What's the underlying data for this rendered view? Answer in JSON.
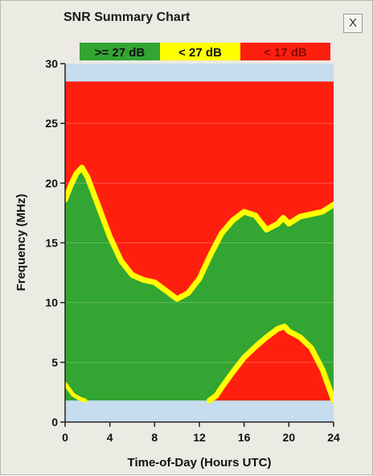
{
  "window": {
    "title": "SNR Summary Chart",
    "close_label": "X"
  },
  "chart_data": {
    "type": "area",
    "title": "SNR Summary Chart",
    "xlabel": "Time-of-Day (Hours UTC)",
    "ylabel": "Frequency (MHz)",
    "xlim": [
      0,
      24
    ],
    "ylim": [
      0,
      30
    ],
    "xticks": [
      0,
      4,
      8,
      12,
      16,
      20,
      24
    ],
    "yticks": [
      0,
      5,
      10,
      15,
      20,
      25,
      30
    ],
    "grid": true,
    "legend_placement": "top",
    "legend": [
      {
        "label": ">= 27 dB",
        "color": "#33a532"
      },
      {
        "label": "< 27 dB",
        "color": "#ffff00"
      },
      {
        "label": "< 17 dB",
        "color": "#ff1f0f"
      }
    ],
    "band_edges_mhz": {
      "upper": 28.5,
      "lower": 1.8
    },
    "series": [
      {
        "name": ">= 27 dB",
        "color": "#33a532",
        "upper_boundary": {
          "x": [
            0,
            0.5,
            1,
            1.5,
            2,
            3,
            4,
            5,
            6,
            7,
            8,
            9,
            10,
            11,
            12,
            13,
            14,
            15,
            16,
            17,
            18,
            19,
            19.5,
            20,
            21,
            22,
            23,
            24
          ],
          "y": [
            18.6,
            19.8,
            20.8,
            21.3,
            20.5,
            18.0,
            15.5,
            13.5,
            12.3,
            11.9,
            11.7,
            11.0,
            10.3,
            10.8,
            12.0,
            14.0,
            15.8,
            16.9,
            17.6,
            17.3,
            16.1,
            16.6,
            17.1,
            16.6,
            17.2,
            17.4,
            17.6,
            18.2
          ]
        }
      },
      {
        "name": "< 17 dB",
        "color": "#ff1f0f",
        "lower_region_boundary": {
          "x": [
            12.9,
            13.5,
            14,
            15,
            16,
            17,
            18,
            19,
            19.6,
            20,
            21,
            22,
            23,
            23.7,
            24
          ],
          "y": [
            1.8,
            2.2,
            2.9,
            4.2,
            5.4,
            6.3,
            7.1,
            7.8,
            8.0,
            7.6,
            7.1,
            6.2,
            4.4,
            2.6,
            1.8
          ]
        },
        "corner_boundary": {
          "x": [
            0,
            0.7,
            1.2,
            1.8
          ],
          "y": [
            3.2,
            2.3,
            2.0,
            1.8
          ]
        }
      }
    ]
  }
}
